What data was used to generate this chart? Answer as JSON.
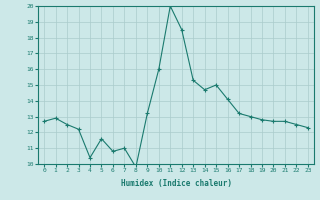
{
  "x": [
    0,
    1,
    2,
    3,
    4,
    5,
    6,
    7,
    8,
    9,
    10,
    11,
    12,
    13,
    14,
    15,
    16,
    17,
    18,
    19,
    20,
    21,
    22,
    23
  ],
  "y": [
    12.7,
    12.9,
    12.5,
    12.2,
    10.4,
    11.6,
    10.8,
    11.0,
    9.8,
    13.2,
    16.0,
    20.0,
    18.5,
    15.3,
    14.7,
    15.0,
    14.1,
    13.2,
    13.0,
    12.8,
    12.7,
    12.7,
    12.5,
    12.3
  ],
  "xlabel": "Humidex (Indice chaleur)",
  "ylim": [
    10,
    20
  ],
  "xlim": [
    -0.5,
    23.5
  ],
  "yticks": [
    10,
    11,
    12,
    13,
    14,
    15,
    16,
    17,
    18,
    19,
    20
  ],
  "xticks": [
    0,
    1,
    2,
    3,
    4,
    5,
    6,
    7,
    8,
    9,
    10,
    11,
    12,
    13,
    14,
    15,
    16,
    17,
    18,
    19,
    20,
    21,
    22,
    23
  ],
  "line_color": "#1a7a6e",
  "marker_color": "#1a7a6e",
  "bg_color": "#cce8e8",
  "grid_color": "#aacccc"
}
